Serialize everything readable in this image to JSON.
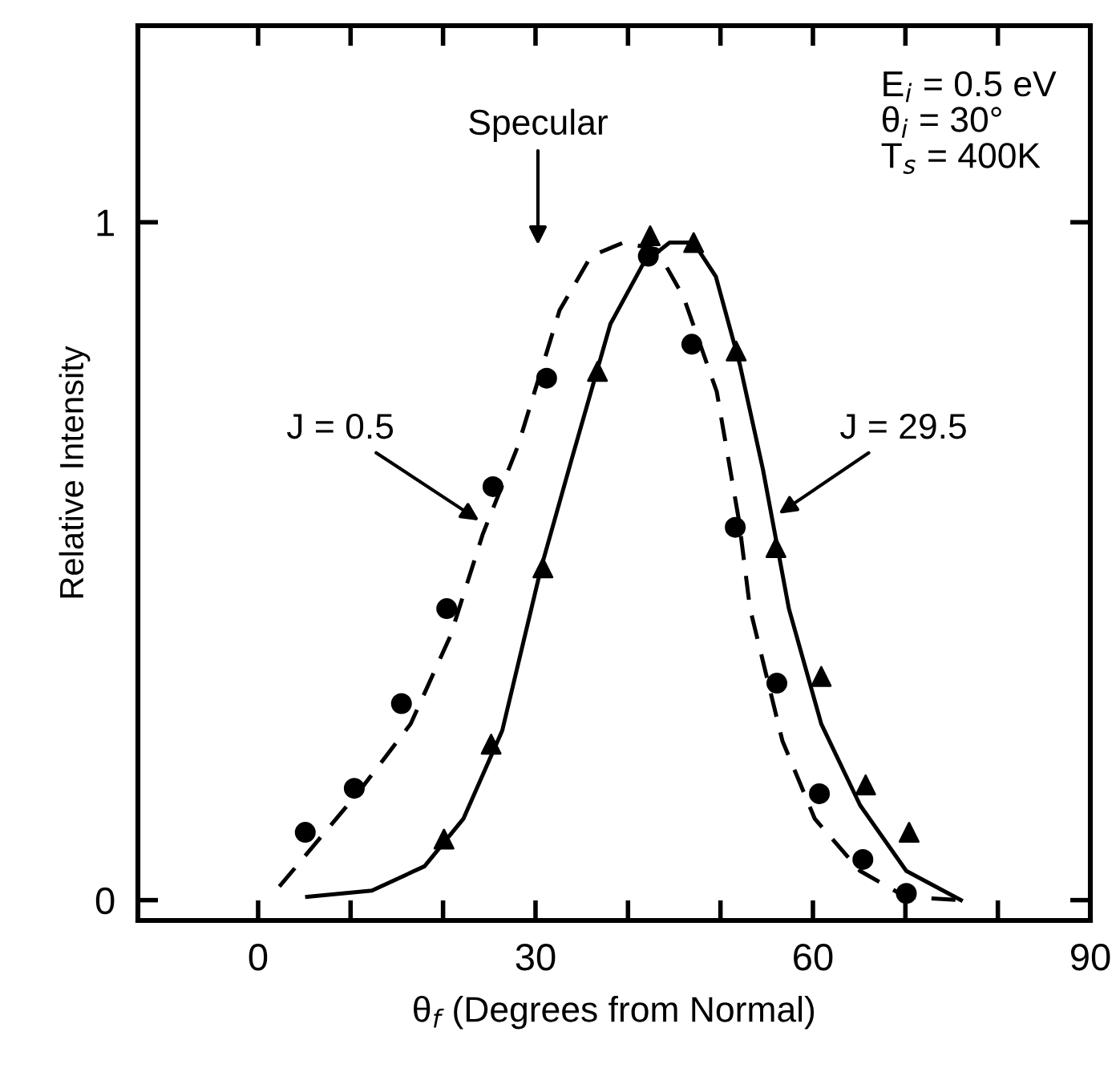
{
  "chart_data": {
    "type": "scatter",
    "xlabel": "θ$_{f}$ (Degrees from Normal)",
    "ylabel": "Relative Intensity",
    "xlim": [
      -13,
      90
    ],
    "ylim": [
      -0.03,
      1.29
    ],
    "xticks": [
      0,
      {
        "value": 10,
        "label": null
      },
      {
        "value": 20,
        "label": null
      },
      30,
      {
        "value": 40,
        "label": null
      },
      {
        "value": 50,
        "label": null
      },
      60,
      {
        "value": 70,
        "label": null
      },
      {
        "value": 80,
        "label": null
      },
      90
    ],
    "yticks": [
      0,
      1
    ],
    "grid": false,
    "series": [
      {
        "type": "line",
        "line_style": "dashed",
        "marker": "none",
        "color": "#000000",
        "x": [
          2.3,
          10.9,
          16.5,
          20.8,
          24.3,
          28.1,
          32.6,
          36.0,
          39.5,
          43.1,
          46.0,
          49.6,
          52.0,
          53.2,
          56.7,
          60.2,
          65.1,
          70.0,
          76.0
        ],
        "values": [
          0.02,
          0.16,
          0.26,
          0.39,
          0.54,
          0.67,
          0.87,
          0.95,
          0.97,
          0.96,
          0.89,
          0.75,
          0.56,
          0.43,
          0.235,
          0.12,
          0.043,
          0.005,
          0.0
        ]
      },
      {
        "type": "line",
        "line_style": "solid",
        "marker": "none",
        "color": "#000000",
        "x": [
          5.3,
          12.3,
          18.0,
          22.2,
          26.4,
          30.6,
          33.9,
          38.1,
          41.7,
          44.5,
          47.1,
          49.5,
          52.1,
          54.6,
          57.4,
          60.9,
          65.1,
          70.1,
          76.0
        ],
        "values": [
          0.005,
          0.014,
          0.05,
          0.12,
          0.25,
          0.49,
          0.65,
          0.85,
          0.94,
          0.97,
          0.97,
          0.92,
          0.79,
          0.635,
          0.43,
          0.26,
          0.14,
          0.043,
          0.0
        ]
      },
      {
        "marker": "circle",
        "color": "#000000",
        "x": [
          5.1,
          10.4,
          15.5,
          20.4,
          25.4,
          31.2,
          42.2,
          46.9,
          51.6,
          56.1,
          60.7,
          65.4,
          70.1
        ],
        "values": [
          0.1,
          0.165,
          0.29,
          0.43,
          0.61,
          0.77,
          0.95,
          0.82,
          0.55,
          0.32,
          0.157,
          0.06,
          0.01
        ]
      },
      {
        "marker": "triangle",
        "color": "#000000",
        "x": [
          20.1,
          25.2,
          30.8,
          36.7,
          42.4,
          47.1,
          51.7,
          56.0,
          60.9,
          65.7,
          70.4
        ],
        "values": [
          0.09,
          0.23,
          0.49,
          0.78,
          0.98,
          0.97,
          0.81,
          0.52,
          0.33,
          0.17,
          0.1
        ]
      }
    ],
    "annotations": [
      "Specular",
      {
        "text": "J = 0.5",
        "x": 23.9,
        "y": 0.56
      },
      {
        "text": "J = 29.5",
        "x": 56.3,
        "y": 0.57
      },
      "E$_{i}$ = 0.5 eV\nθ$_{i}$ = 30°\nT$_{s}$ = 400K"
    ]
  }
}
